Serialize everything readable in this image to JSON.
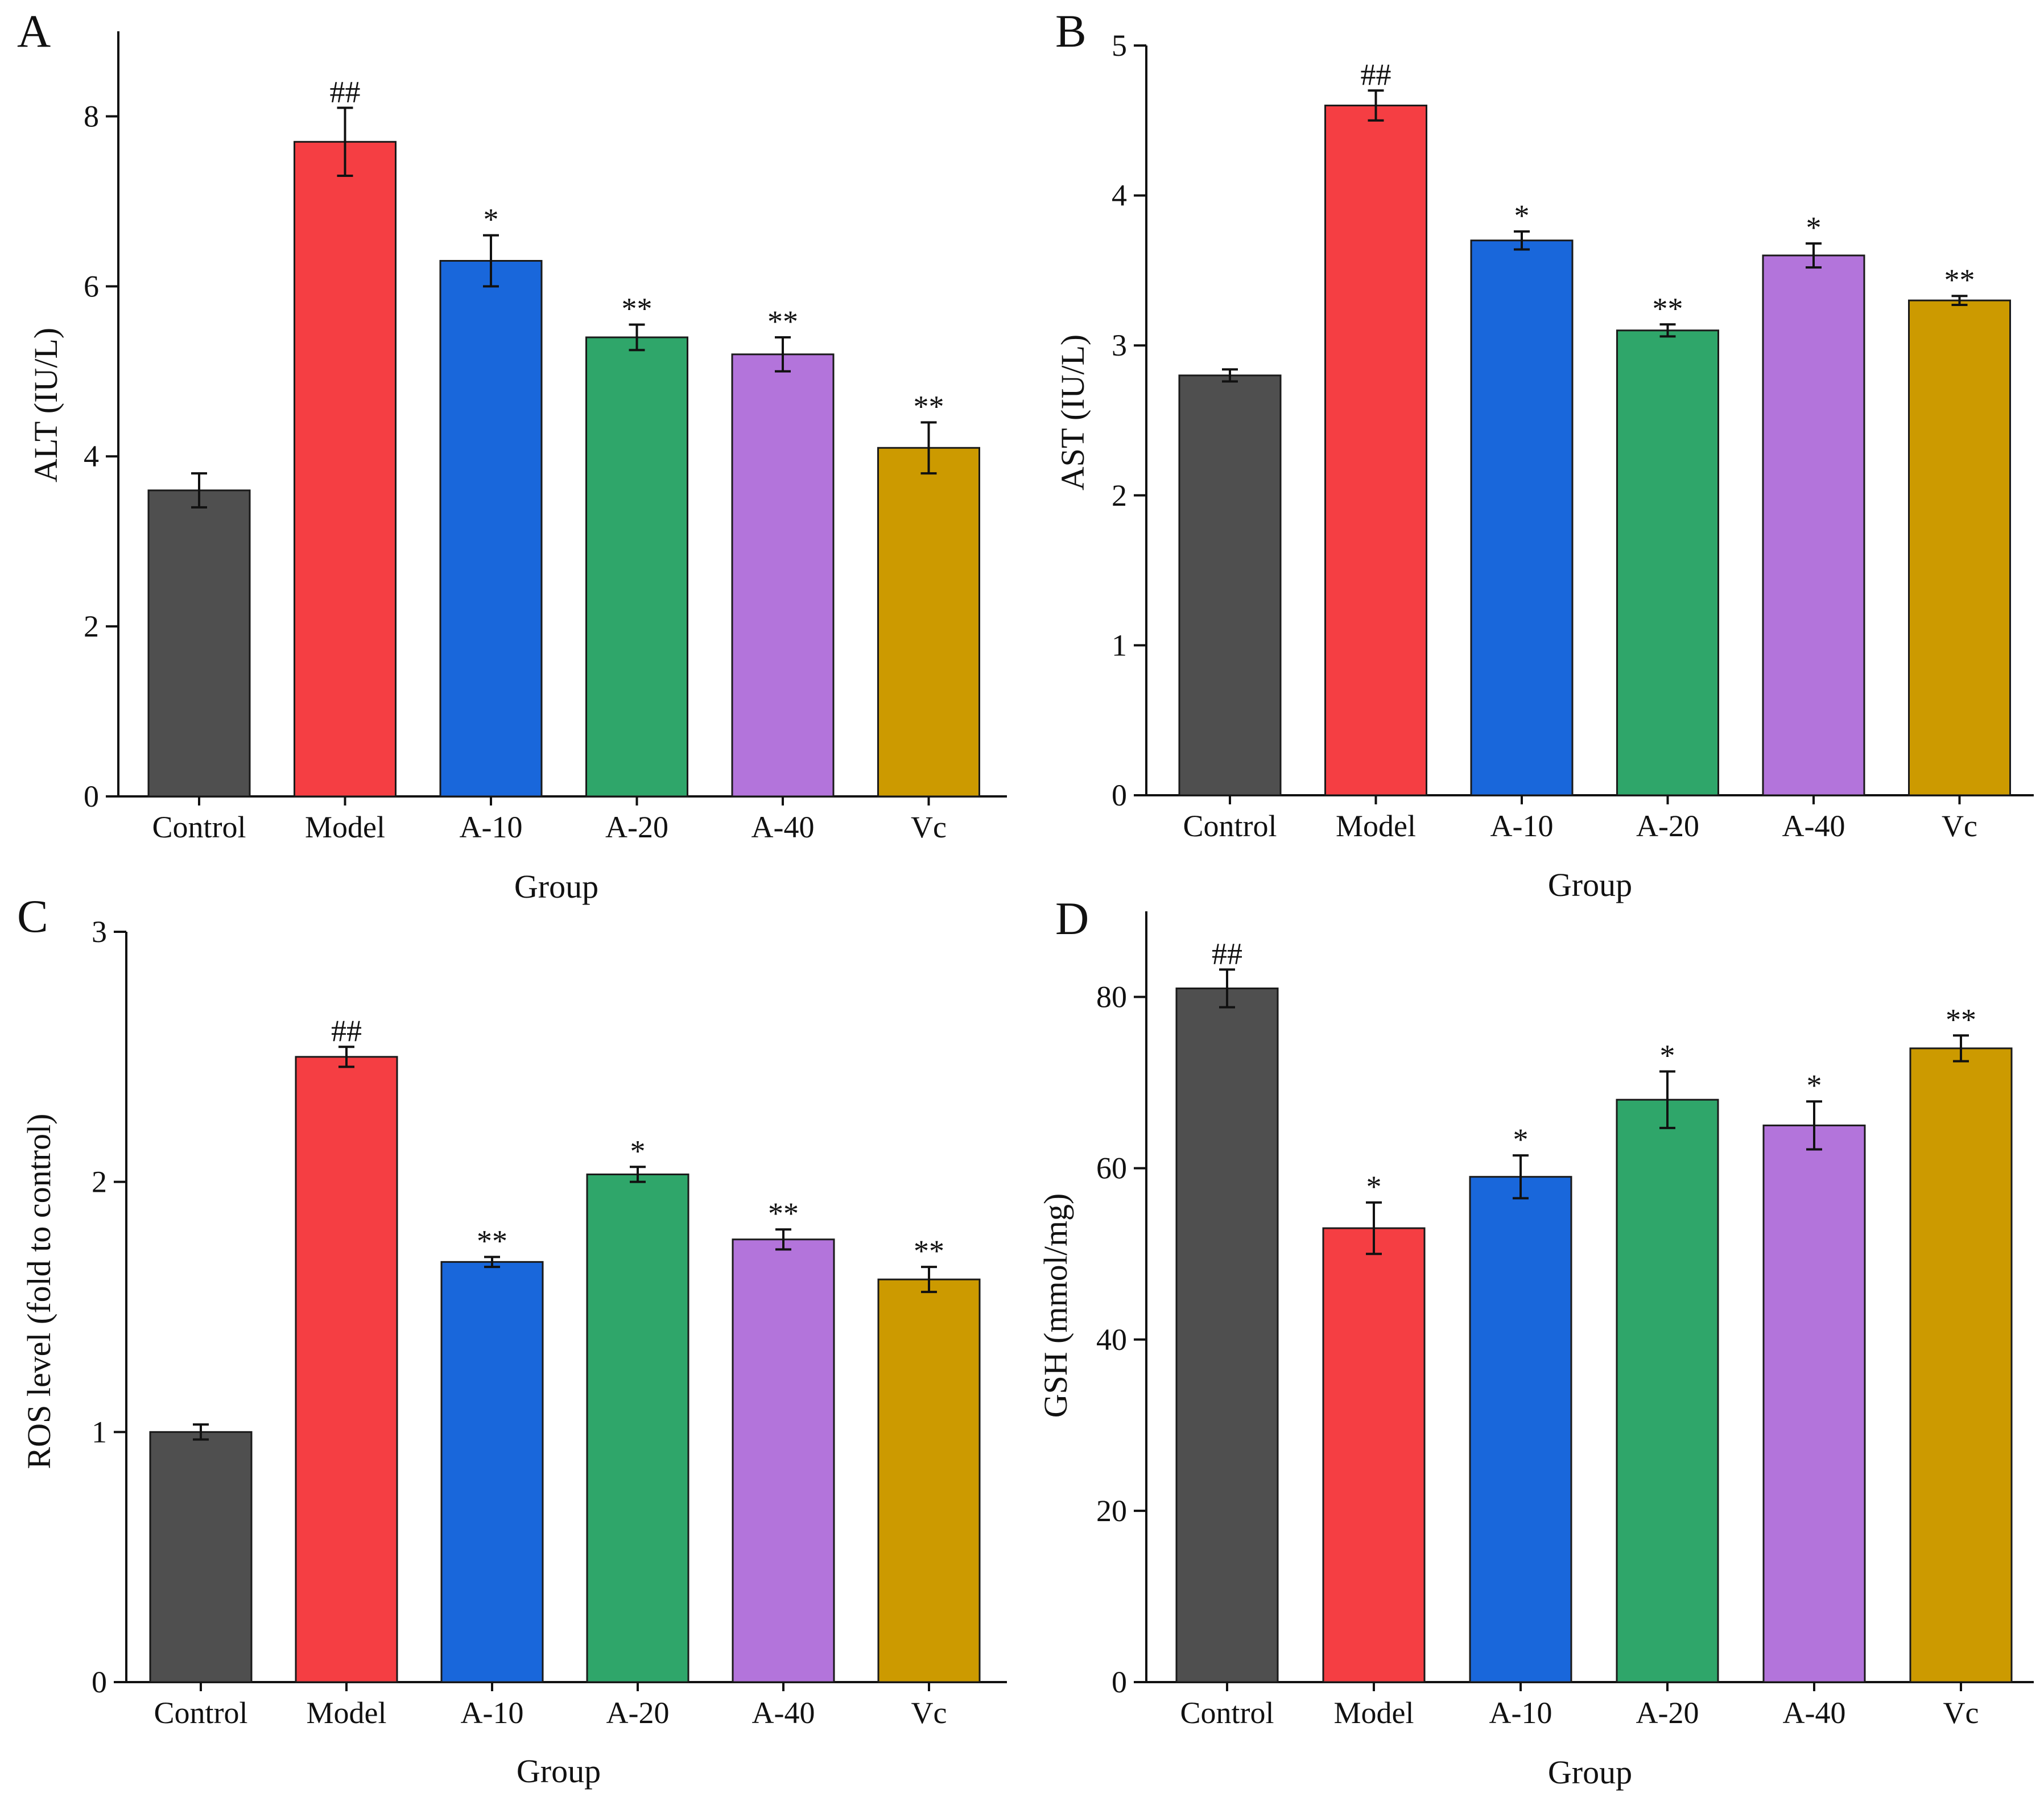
{
  "colors": {
    "Control": "#4f4f4f",
    "Model": "#f53e43",
    "A-10": "#1967db",
    "A-20": "#2fa66a",
    "A-40": "#b374db",
    "Vc": "#cc9a00",
    "axis": "#111111"
  },
  "chart_data": [
    {
      "panel": "A",
      "type": "bar",
      "categories": [
        "Control",
        "Model",
        "A-10",
        "A-20",
        "A-40",
        "Vc"
      ],
      "values": [
        3.6,
        7.7,
        6.3,
        5.4,
        5.2,
        4.1
      ],
      "errors": [
        0.2,
        0.4,
        0.3,
        0.15,
        0.2,
        0.3
      ],
      "annotations": [
        "",
        "##",
        "*",
        "**",
        "**",
        "**"
      ],
      "xlabel": "Group",
      "ylabel": "ALT (IU/L)",
      "ylim": [
        0,
        9
      ],
      "yticks": [
        0,
        2,
        4,
        6,
        8
      ],
      "grid": false
    },
    {
      "panel": "B",
      "type": "bar",
      "categories": [
        "Control",
        "Model",
        "A-10",
        "A-20",
        "A-40",
        "Vc"
      ],
      "values": [
        2.8,
        4.6,
        3.7,
        3.1,
        3.6,
        3.3
      ],
      "errors": [
        0.04,
        0.1,
        0.06,
        0.04,
        0.08,
        0.03
      ],
      "annotations": [
        "",
        "##",
        "*",
        "**",
        "*",
        "**"
      ],
      "xlabel": "Group",
      "ylabel": "AST (IU/L)",
      "ylim": [
        0,
        5
      ],
      "yticks": [
        0,
        1,
        2,
        3,
        4,
        5
      ],
      "grid": false
    },
    {
      "panel": "C",
      "type": "bar",
      "categories": [
        "Control",
        "Model",
        "A-10",
        "A-20",
        "A-40",
        "Vc"
      ],
      "values": [
        1.0,
        2.5,
        1.68,
        2.03,
        1.77,
        1.61
      ],
      "errors": [
        0.03,
        0.04,
        0.02,
        0.03,
        0.04,
        0.05
      ],
      "annotations": [
        "",
        "##",
        "**",
        "*",
        "**",
        "**"
      ],
      "xlabel": "Group",
      "ylabel": "ROS level (fold to control)",
      "ylim": [
        0,
        3
      ],
      "yticks": [
        0,
        1,
        2,
        3
      ],
      "grid": false
    },
    {
      "panel": "D",
      "type": "bar",
      "categories": [
        "Control",
        "Model",
        "A-10",
        "A-20",
        "A-40",
        "Vc"
      ],
      "values": [
        81,
        53,
        59,
        68,
        65,
        74
      ],
      "errors": [
        2.2,
        3,
        2.5,
        3.3,
        2.8,
        1.5
      ],
      "annotations": [
        "##",
        "*",
        "*",
        "*",
        "*",
        "**"
      ],
      "xlabel": "Group",
      "ylabel": "GSH (mmol/mg)",
      "ylim": [
        0,
        90
      ],
      "yticks": [
        0,
        20,
        40,
        60,
        80
      ],
      "grid": false
    }
  ]
}
